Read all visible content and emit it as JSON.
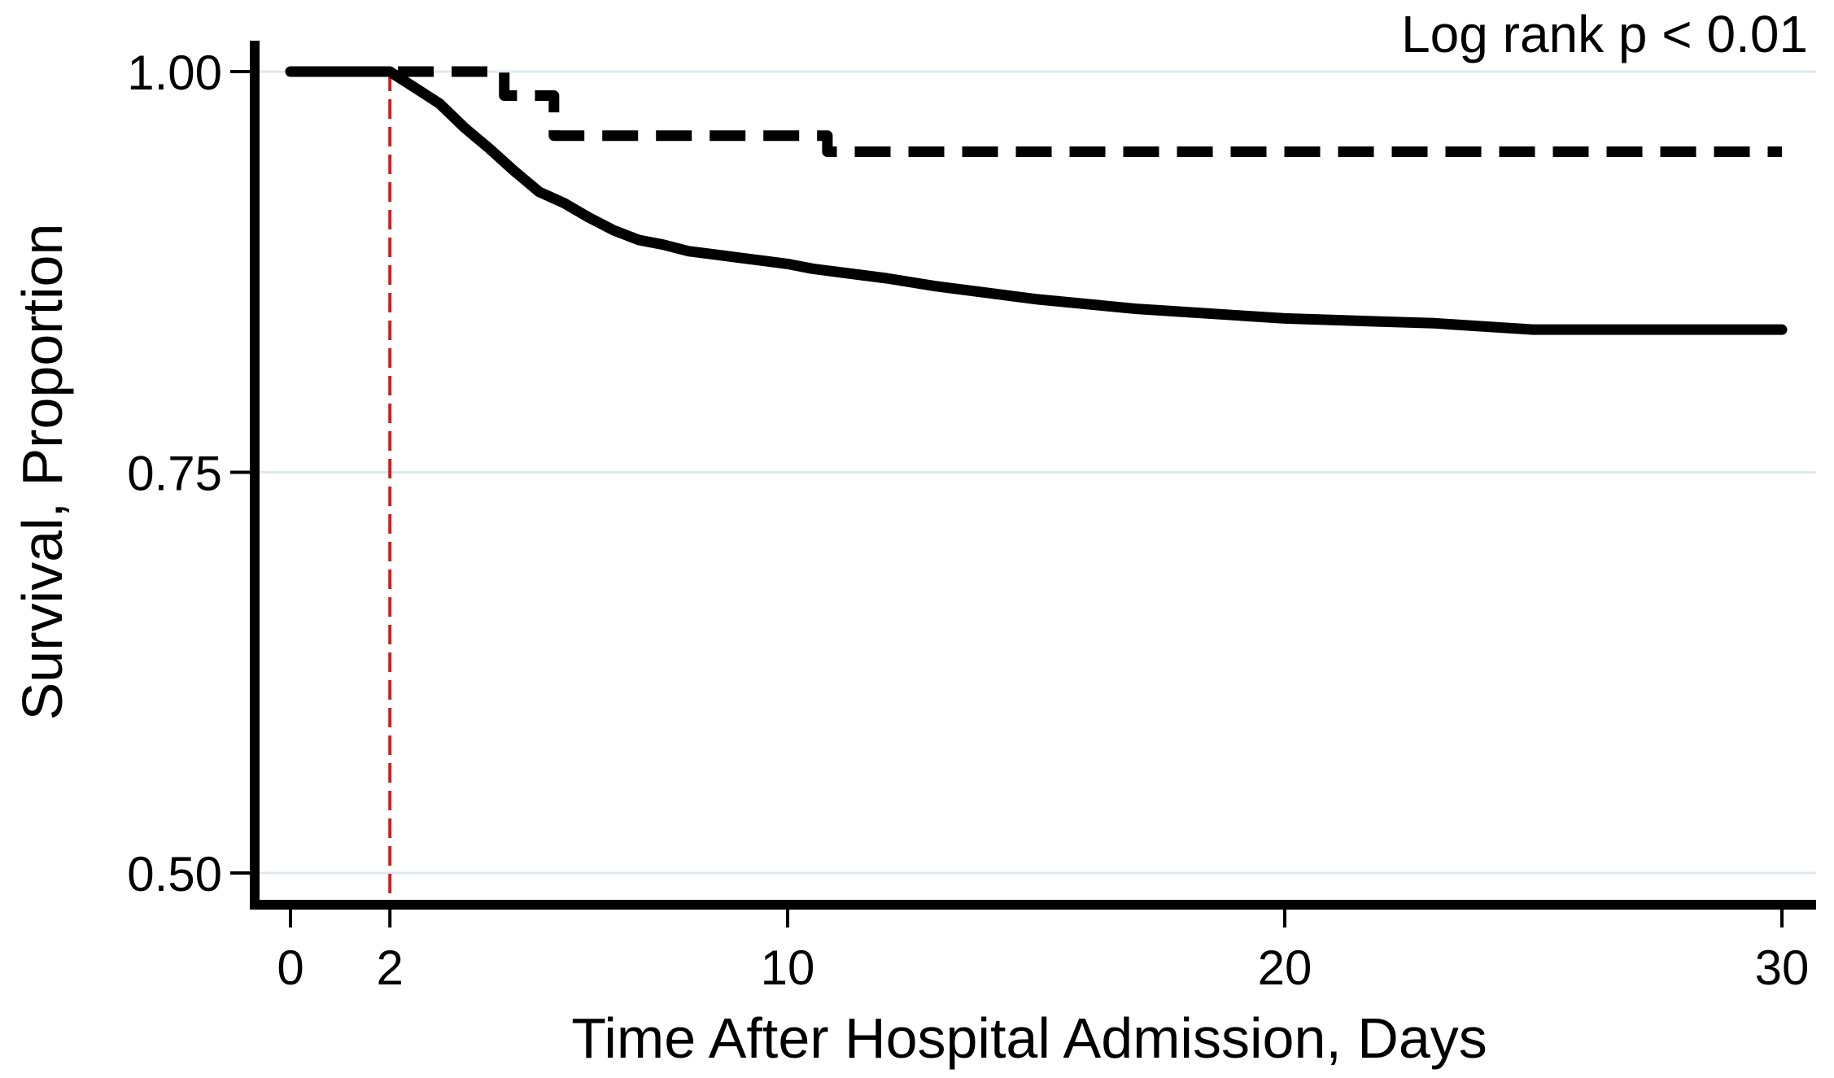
{
  "chart_data": {
    "type": "line",
    "title": "",
    "annotation": "Log rank p < 0.01",
    "xlabel": "Time After Hospital Admission, Days",
    "ylabel": "Survival, Proportion",
    "xlim": [
      0,
      30
    ],
    "ylim": [
      0.5,
      1.0
    ],
    "x_ticks": [
      0,
      2,
      10,
      20,
      30
    ],
    "x_tick_labels": [
      "0",
      "2",
      "10",
      "20",
      "30"
    ],
    "y_ticks": [
      0.5,
      0.75,
      1.0
    ],
    "y_tick_labels": [
      "0.50",
      "0.75",
      "1.00"
    ],
    "grid": "horizontal",
    "reference_line": {
      "x": 2,
      "color": "#cc2222",
      "style": "dashed"
    },
    "colors": {
      "series": "#000000",
      "grid": "#dde8f0",
      "reference": "#cc2222"
    },
    "series": [
      {
        "style": "dashed",
        "step": true,
        "x": [
          0,
          2,
          4.3,
          5.3,
          10.8,
          30
        ],
        "y": [
          1.0,
          1.0,
          0.985,
          0.96,
          0.95,
          0.95
        ]
      },
      {
        "style": "solid",
        "step": false,
        "x": [
          0,
          2,
          2.5,
          3,
          3.5,
          4,
          4.5,
          5,
          5.5,
          6,
          6.5,
          7,
          7.5,
          8,
          8.5,
          9,
          9.5,
          10,
          10.5,
          11,
          12,
          13,
          14,
          15,
          16,
          17,
          18,
          19,
          20,
          21,
          22,
          23,
          24,
          25,
          26,
          27,
          28,
          29,
          30
        ],
        "y": [
          1.0,
          1.0,
          0.99,
          0.98,
          0.965,
          0.952,
          0.938,
          0.925,
          0.918,
          0.909,
          0.901,
          0.895,
          0.892,
          0.888,
          0.886,
          0.884,
          0.882,
          0.88,
          0.877,
          0.875,
          0.871,
          0.866,
          0.862,
          0.858,
          0.855,
          0.852,
          0.85,
          0.848,
          0.846,
          0.845,
          0.844,
          0.843,
          0.841,
          0.839,
          0.839,
          0.839,
          0.839,
          0.839,
          0.839
        ]
      }
    ]
  }
}
